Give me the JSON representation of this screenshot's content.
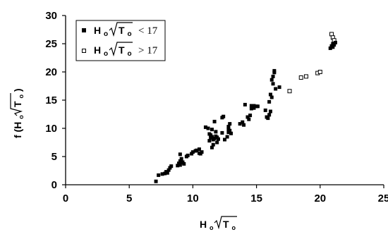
{
  "chart_data": {
    "type": "scatter",
    "xlim": [
      0,
      25
    ],
    "ylim": [
      0,
      30
    ],
    "xticks": [
      "0",
      "5",
      "10",
      "15",
      "20",
      "25"
    ],
    "yticks": [
      "0",
      "5",
      "10",
      "15",
      "20",
      "25",
      "30"
    ],
    "xlabel": {
      "main": "H",
      "sub": "o",
      "rad": "T",
      "radsub": "o"
    },
    "ylabel": {
      "main": "f (H",
      "sub": "o",
      "rad": "T",
      "radsub": "o",
      "close": ")"
    },
    "legend_position": "top-left",
    "series": [
      {
        "legend": {
          "main": "H",
          "sub": "o",
          "rad": "T",
          "radsub": "o",
          "op": "< 17"
        },
        "marker": "filled-square",
        "points": [
          [
            7.1,
            0.6
          ],
          [
            7.3,
            1.7
          ],
          [
            7.6,
            1.9
          ],
          [
            7.8,
            2.0
          ],
          [
            7.9,
            2.3
          ],
          [
            8.0,
            2.1
          ],
          [
            8.1,
            2.6
          ],
          [
            8.2,
            3.0
          ],
          [
            8.3,
            3.3
          ],
          [
            8.8,
            3.4
          ],
          [
            8.9,
            3.8
          ],
          [
            9.0,
            4.2
          ],
          [
            9.0,
            3.5
          ],
          [
            9.1,
            3.9
          ],
          [
            9.1,
            4.6
          ],
          [
            9.2,
            4.0
          ],
          [
            9.3,
            3.7
          ],
          [
            9.0,
            5.4
          ],
          [
            9.5,
            5.0
          ],
          [
            9.6,
            5.2
          ],
          [
            9.9,
            5.5
          ],
          [
            10.0,
            5.8
          ],
          [
            10.2,
            6.0
          ],
          [
            10.3,
            6.1
          ],
          [
            10.5,
            6.3
          ],
          [
            10.5,
            5.6
          ],
          [
            10.6,
            5.5
          ],
          [
            10.7,
            5.8
          ],
          [
            11.0,
            10.2
          ],
          [
            11.2,
            10.0
          ],
          [
            11.3,
            9.0
          ],
          [
            11.3,
            7.8
          ],
          [
            11.4,
            8.3
          ],
          [
            11.4,
            8.8
          ],
          [
            11.5,
            8.5
          ],
          [
            11.5,
            9.8
          ],
          [
            11.5,
            6.6
          ],
          [
            11.6,
            7.1
          ],
          [
            11.6,
            8.0
          ],
          [
            11.7,
            8.2
          ],
          [
            11.8,
            8.6
          ],
          [
            11.8,
            9.4
          ],
          [
            11.9,
            8.4
          ],
          [
            11.9,
            7.5
          ],
          [
            12.0,
            8.1
          ],
          [
            11.7,
            11.2
          ],
          [
            12.3,
            11.9
          ],
          [
            12.4,
            12.1
          ],
          [
            12.3,
            9.2
          ],
          [
            12.5,
            8.0
          ],
          [
            12.7,
            8.5
          ],
          [
            12.8,
            9.3
          ],
          [
            12.8,
            9.8
          ],
          [
            12.8,
            10.3
          ],
          [
            12.9,
            9.6
          ],
          [
            12.9,
            10.8
          ],
          [
            13.0,
            9.1
          ],
          [
            13.7,
            10.8
          ],
          [
            13.9,
            11.1
          ],
          [
            14.0,
            10.6
          ],
          [
            14.1,
            14.2
          ],
          [
            14.3,
            12.0
          ],
          [
            14.4,
            11.6
          ],
          [
            14.5,
            12.3
          ],
          [
            14.6,
            13.5
          ],
          [
            14.6,
            14.0
          ],
          [
            14.7,
            13.8
          ],
          [
            14.8,
            14.0
          ],
          [
            14.8,
            13.6
          ],
          [
            15.0,
            13.9
          ],
          [
            15.1,
            13.9
          ],
          [
            15.7,
            13.2
          ],
          [
            15.8,
            12.0
          ],
          [
            15.9,
            11.8
          ],
          [
            16.0,
            12.4
          ],
          [
            16.0,
            14.7
          ],
          [
            16.1,
            13.0
          ],
          [
            16.1,
            16.0
          ],
          [
            16.2,
            15.5
          ],
          [
            16.2,
            18.6
          ],
          [
            16.3,
            17.9
          ],
          [
            16.3,
            19.2
          ],
          [
            16.4,
            19.9
          ],
          [
            16.4,
            20.2
          ],
          [
            16.5,
            17.0
          ],
          [
            16.8,
            17.3
          ]
        ]
      },
      {
        "legend": {
          "main": "H",
          "sub": "o",
          "rad": "T",
          "radsub": "o",
          "op": "> 17"
        },
        "marker": "open-square",
        "points": [
          [
            17.6,
            16.6
          ],
          [
            18.5,
            19.0
          ],
          [
            18.9,
            19.2
          ],
          [
            19.8,
            19.8
          ],
          [
            20.0,
            20.0
          ],
          [
            20.9,
            26.7
          ],
          [
            21.0,
            26.1
          ],
          [
            21.1,
            25.6
          ]
        ]
      },
      {
        "legend": null,
        "marker": "filled-square",
        "points": [
          [
            20.8,
            24.2
          ],
          [
            20.9,
            24.6
          ],
          [
            21.0,
            24.4
          ],
          [
            21.0,
            25.0
          ],
          [
            21.1,
            24.8
          ],
          [
            21.2,
            25.2
          ]
        ]
      }
    ]
  }
}
